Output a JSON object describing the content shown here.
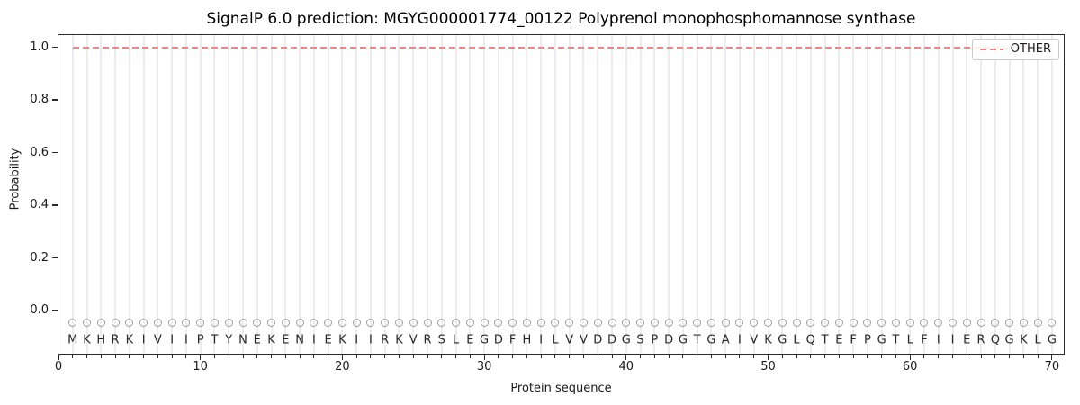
{
  "chart_data": {
    "type": "line",
    "title": "SignalP 6.0 prediction: MGYG000001774_00122 Polyprenol monophosphomannose synthase",
    "xlabel": "Protein sequence",
    "ylabel": "Probability",
    "x_ticks": [
      0,
      10,
      20,
      30,
      40,
      50,
      60,
      70
    ],
    "y_ticks": [
      "0.0",
      "0.2",
      "0.4",
      "0.6",
      "0.8",
      "1.0"
    ],
    "xlim": [
      0,
      70.9
    ],
    "ylim": [
      -0.17,
      1.05
    ],
    "grid": {
      "axis": "x",
      "per_residue": true,
      "color": "#ececec"
    },
    "legend": {
      "position": "upper right",
      "entries": [
        {
          "label": "OTHER",
          "color": "#ef8585",
          "linestyle": "dashed"
        }
      ]
    },
    "series": [
      {
        "name": "OTHER",
        "color": "#ef8585",
        "linestyle": "dashed",
        "x_start": 1,
        "x_end": 70,
        "constant_value": 1.0
      }
    ],
    "sequence": "MKHRKIVIIPTYNEKENIEKIIRKVRSLEGDFHILVVDDGSPDGTGAIVKGLQTEFPGTLFIIERQGKLG",
    "residue_markers": {
      "shape": "open-circle",
      "color": "#9e9e9e",
      "y_value": -0.05
    }
  }
}
